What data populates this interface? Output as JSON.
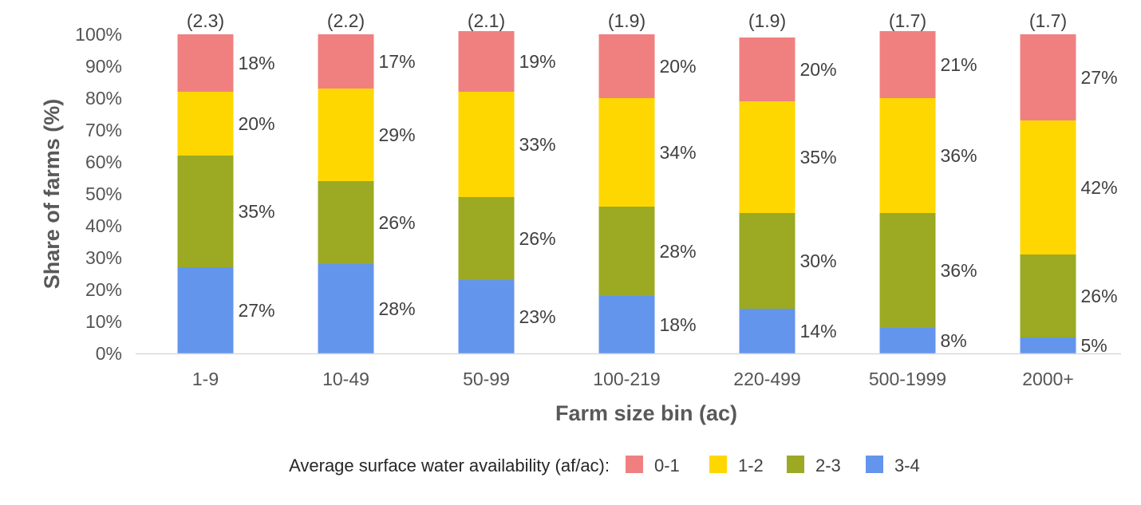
{
  "chart_data": {
    "type": "bar",
    "stacked": true,
    "categories": [
      "1-9",
      "10-49",
      "50-99",
      "100-219",
      "220-499",
      "500-1999",
      "2000+"
    ],
    "category_annotations": [
      "(2.3)",
      "(2.2)",
      "(2.1)",
      "(1.9)",
      "(1.9)",
      "(1.7)",
      "(1.7)"
    ],
    "series": [
      {
        "name": "3-4",
        "color": "#6495ED",
        "values": [
          27,
          28,
          23,
          18,
          14,
          8,
          5
        ],
        "labels": [
          "27%",
          "28%",
          "23%",
          "18%",
          "14%",
          "8%",
          "5%"
        ]
      },
      {
        "name": "2-3",
        "color": "#9BAA22",
        "values": [
          35,
          26,
          26,
          28,
          30,
          36,
          26
        ],
        "labels": [
          "35%",
          "26%",
          "26%",
          "28%",
          "30%",
          "36%",
          "26%"
        ]
      },
      {
        "name": "1-2",
        "color": "#FFD700",
        "values": [
          20,
          29,
          33,
          34,
          35,
          36,
          42
        ],
        "labels": [
          "20%",
          "29%",
          "33%",
          "34%",
          "35%",
          "36%",
          "42%"
        ]
      },
      {
        "name": "0-1",
        "color": "#F08080",
        "values": [
          18,
          17,
          19,
          20,
          20,
          21,
          27
        ],
        "labels": [
          "18%",
          "17%",
          "19%",
          "20%",
          "20%",
          "21%",
          "27%"
        ]
      }
    ],
    "xlabel": "Farm size bin (ac)",
    "ylabel": "Share of farms (%)",
    "ylim": [
      0,
      100
    ],
    "yticks": [
      "0%",
      "10%",
      "20%",
      "30%",
      "40%",
      "50%",
      "60%",
      "70%",
      "80%",
      "90%",
      "100%"
    ],
    "legend": {
      "title": "Average surface water availability (af/ac):",
      "placement": "bottom",
      "order": [
        "0-1",
        "1-2",
        "2-3",
        "3-4"
      ]
    },
    "grid": false
  }
}
